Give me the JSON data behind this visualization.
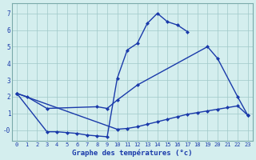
{
  "xlabel": "Graphe des températures (°c)",
  "bg_color": "#d4eeee",
  "line_color": "#1a3aaa",
  "grid_color": "#a0c8c8",
  "xlim": [
    -0.5,
    23.5
  ],
  "ylim": [
    -0.65,
    7.6
  ],
  "xticks": [
    0,
    1,
    2,
    3,
    4,
    5,
    6,
    7,
    8,
    9,
    10,
    11,
    12,
    13,
    14,
    15,
    16,
    17,
    18,
    19,
    20,
    21,
    22,
    23
  ],
  "yticks": [
    0,
    1,
    2,
    3,
    4,
    5,
    6,
    7
  ],
  "ytick_labels": [
    "-0",
    "1",
    "2",
    "3",
    "4",
    "5",
    "6",
    "7"
  ],
  "line1_x": [
    0,
    1,
    3,
    8,
    9,
    10,
    12,
    19,
    20,
    22,
    23
  ],
  "line1_y": [
    2.2,
    2.0,
    1.3,
    1.4,
    1.3,
    1.8,
    2.7,
    5.0,
    4.3,
    2.0,
    0.9
  ],
  "line2_x": [
    0,
    3,
    4,
    5,
    6,
    7,
    8,
    9,
    10,
    11,
    12,
    13,
    14,
    15,
    16,
    17
  ],
  "line2_y": [
    2.2,
    -0.1,
    -0.1,
    -0.15,
    -0.2,
    -0.3,
    -0.35,
    -0.4,
    3.1,
    4.8,
    5.2,
    6.4,
    7.0,
    6.5,
    6.3,
    5.9
  ],
  "line3_x": [
    0,
    10,
    11,
    12,
    13,
    14,
    15,
    16,
    17,
    18,
    19,
    20,
    21,
    22,
    23
  ],
  "line3_y": [
    2.2,
    0.05,
    0.1,
    0.2,
    0.35,
    0.5,
    0.65,
    0.8,
    0.95,
    1.05,
    1.15,
    1.25,
    1.35,
    1.45,
    0.9
  ]
}
